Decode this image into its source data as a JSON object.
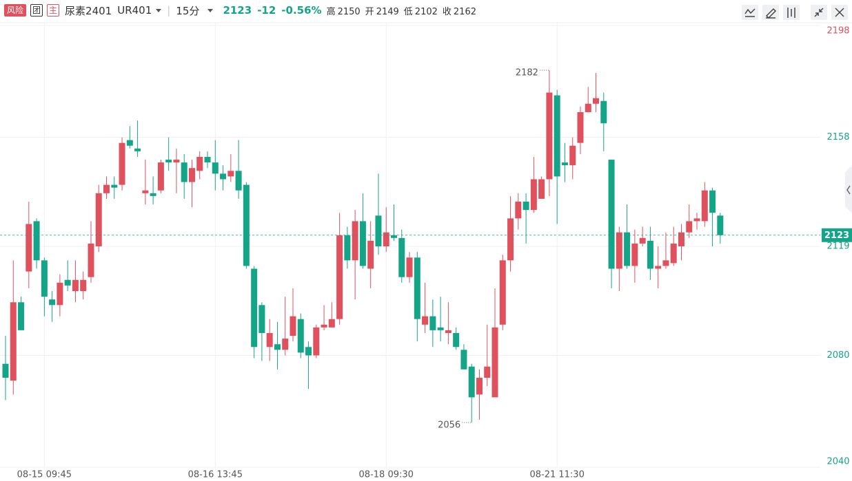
{
  "header": {
    "badges": [
      "风险",
      "团",
      "主"
    ],
    "name": "尿素2401",
    "code": "UR401",
    "period": "15分",
    "change": "-12",
    "change_pct": "-0.56%",
    "stats": [
      {
        "label": "高",
        "value": "2150"
      },
      {
        "label": "开",
        "value": "2149"
      },
      {
        "label": "低",
        "value": "2102"
      },
      {
        "label": "收",
        "value": "2162"
      }
    ]
  },
  "chart_data": {
    "type": "candlestick",
    "up_color": "#e0515e",
    "down_color": "#14a589",
    "grid": true,
    "categories": [
      null,
      null,
      null,
      null,
      null,
      "08-15 09:45",
      null,
      null,
      null,
      null,
      null,
      null,
      null,
      null,
      null,
      null,
      null,
      null,
      null,
      null,
      null,
      null,
      null,
      null,
      null,
      null,
      null,
      "08-16 13:45",
      null,
      null,
      null,
      null,
      null,
      null,
      null,
      null,
      null,
      null,
      null,
      null,
      null,
      null,
      null,
      null,
      null,
      null,
      null,
      null,
      null,
      "08-18 09:30",
      null,
      null,
      null,
      null,
      null,
      null,
      null,
      null,
      null,
      null,
      null,
      null,
      null,
      null,
      null,
      null,
      null,
      null,
      null,
      null,
      null,
      "08-21 11:30",
      null,
      null,
      null,
      null,
      null,
      null,
      null,
      null,
      null,
      null,
      null,
      null,
      null,
      null,
      null,
      null,
      null,
      null,
      null,
      null,
      null
    ],
    "open": [
      2077,
      2071,
      2099,
      2110,
      2128,
      2114,
      2100,
      2098,
      2107,
      2103,
      2103,
      2108,
      2119,
      2138,
      2141,
      2141,
      2157,
      2154,
      2138,
      2138,
      2139,
      2150,
      2149,
      2149,
      2142,
      2146,
      2151,
      2149,
      2145,
      2144,
      2146,
      2141,
      2111,
      2098,
      2083,
      2084,
      2082,
      2087,
      2093,
      2083,
      2080,
      2090,
      2090,
      2093,
      2123,
      2114,
      2128,
      2111,
      2130,
      2119,
      2123,
      2122,
      2108,
      2115,
      2091,
      2094,
      2090,
      2088,
      2088,
      2082,
      2076,
      2066,
      2072,
      2065,
      2091,
      2114,
      2129,
      2135,
      2132,
      2136,
      2143,
      2173,
      2149,
      2148,
      2156,
      2167,
      2170,
      2171,
      2150,
      2111,
      2124,
      2112,
      2120,
      2121,
      2111,
      2112,
      2113,
      2119,
      2124,
      2128,
      2128,
      2139,
      2130
    ],
    "high": [
      2087,
      2114,
      2101,
      2135,
      2129,
      2115,
      2103,
      2109,
      2114,
      2114,
      2110,
      2128,
      2141,
      2144,
      2144,
      2158,
      2162,
      2164,
      2150,
      2144,
      2150,
      2158,
      2154,
      2152,
      2150,
      2153,
      2153,
      2157,
      2148,
      2152,
      2157,
      2142,
      2112,
      2099,
      2093,
      2092,
      2101,
      2104,
      2095,
      2085,
      2091,
      2098,
      2099,
      2131,
      2126,
      2132,
      2138,
      2128,
      2145,
      2133,
      2134,
      2125,
      2117,
      2117,
      2106,
      2100,
      2101,
      2099,
      2090,
      2084,
      2077,
      2075,
      2091,
      2104,
      2116,
      2137,
      2138,
      2138,
      2151,
      2144,
      2182,
      2175,
      2156,
      2158,
      2169,
      2176,
      2181,
      2174,
      2150,
      2126,
      2134,
      2125,
      2126,
      2126,
      2119,
      2124,
      2126,
      2127,
      2134,
      2131,
      2142,
      2140,
      2131
    ],
    "low": [
      2064,
      2066,
      2089,
      2104,
      2111,
      2094,
      2092,
      2094,
      2103,
      2099,
      2100,
      2106,
      2117,
      2136,
      2136,
      2139,
      2154,
      2151,
      2134,
      2134,
      2138,
      2146,
      2138,
      2136,
      2133,
      2143,
      2147,
      2139,
      2139,
      2142,
      2136,
      2111,
      2079,
      2078,
      2078,
      2075,
      2080,
      2085,
      2079,
      2068,
      2079,
      2089,
      2090,
      2091,
      2111,
      2100,
      2111,
      2104,
      2116,
      2117,
      2121,
      2106,
      2106,
      2085,
      2088,
      2083,
      2085,
      2084,
      2082,
      2075,
      2056,
      2057,
      2069,
      2065,
      2089,
      2110,
      2125,
      2120,
      2131,
      2136,
      2137,
      2127,
      2142,
      2143,
      2152,
      2167,
      2167,
      2153,
      2104,
      2103,
      2111,
      2106,
      2119,
      2107,
      2104,
      2111,
      2112,
      2114,
      2122,
      2125,
      2126,
      2119,
      2120
    ],
    "close": [
      2072,
      2099,
      2089,
      2127,
      2114,
      2101,
      2098,
      2106,
      2105,
      2107,
      2107,
      2120,
      2138,
      2141,
      2140,
      2156,
      2155,
      2153,
      2139,
      2137,
      2149,
      2149,
      2150,
      2142,
      2147,
      2151,
      2149,
      2145,
      2143,
      2146,
      2139,
      2112,
      2083,
      2088,
      2088,
      2082,
      2086,
      2094,
      2081,
      2080,
      2090,
      2091,
      2093,
      2123,
      2114,
      2128,
      2112,
      2121,
      2119,
      2124,
      2122,
      2108,
      2115,
      2093,
      2094,
      2089,
      2089,
      2089,
      2083,
      2075,
      2065,
      2072,
      2076,
      2090,
      2114,
      2129,
      2135,
      2132,
      2143,
      2143,
      2174,
      2144,
      2148,
      2155,
      2167,
      2170,
      2172,
      2163,
      2111,
      2124,
      2112,
      2120,
      2122,
      2111,
      2112,
      2114,
      2120,
      2124,
      2128,
      2129,
      2139,
      2131,
      2123
    ],
    "ylim": [
      2040,
      2198
    ],
    "yticks": [
      2040,
      2080,
      2119,
      2158,
      2198
    ],
    "ytick_colors": [
      "#14a589",
      "#14a589",
      "#14a589",
      "#14a589",
      "#e0515e"
    ]
  }
}
